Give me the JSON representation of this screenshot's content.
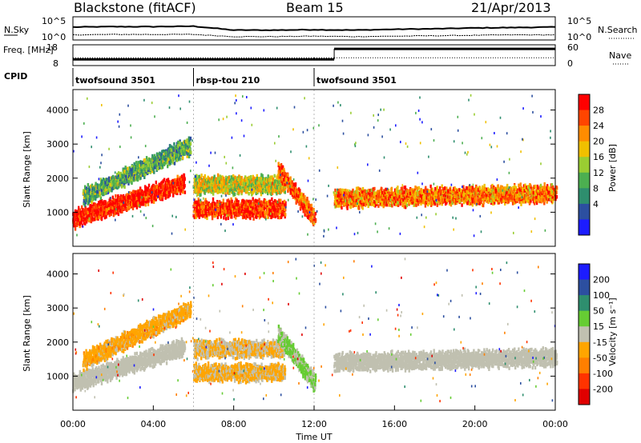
{
  "header": {
    "title_left": "Blackstone (fitACF)",
    "title_center": "Beam 15",
    "title_right": "21/Apr/2013"
  },
  "colors": {
    "power_scale": [
      "#1c1cff",
      "#2c4fa0",
      "#2e8e6e",
      "#4caf50",
      "#9acd32",
      "#f0c000",
      "#ff8c00",
      "#ff4500",
      "#ff0000"
    ],
    "velocity_scale": [
      "#1c1cff",
      "#2c4fa0",
      "#2e8e6e",
      "#66cc33",
      "#c0c0b0",
      "#ffa500",
      "#ff7f00",
      "#ff3300",
      "#e00000"
    ],
    "noise_line": "#000000",
    "background": "#ffffff"
  },
  "chart_data": [
    {
      "type": "line",
      "panel": "noise",
      "left_label": "N.Sky",
      "right_label": "N.Search",
      "left_ticks": [
        "10^5",
        "10^0"
      ],
      "right_ticks": [
        "10^5",
        "10^0"
      ],
      "x": [
        "00:00",
        "02:00",
        "04:00",
        "06:00",
        "08:00",
        "10:00",
        "12:00",
        "14:00",
        "16:00",
        "18:00",
        "20:00",
        "22:00",
        "24:00"
      ],
      "series": [
        {
          "values": [
            2.8,
            2.9,
            2.9,
            3.0,
            2.1,
            2.1,
            2.2,
            2.1,
            2.3,
            2.4,
            2.6,
            2.7,
            2.8
          ]
        },
        {
          "values": [
            1.0,
            1.1,
            1.1,
            1.1,
            0.6,
            0.6,
            0.7,
            0.6,
            0.7,
            0.8,
            0.9,
            1.0,
            1.0
          ]
        }
      ]
    },
    {
      "type": "line",
      "panel": "frequency",
      "left_label": "Freq. [MHz]",
      "right_label": "Nave",
      "left_ticks": [
        "18",
        "8"
      ],
      "right_ticks": [
        "60",
        "0"
      ],
      "steps": [
        {
          "start": "00:00",
          "end": "12:00",
          "freq": 10.8,
          "nave": 22
        },
        {
          "start": "12:00",
          "end": "13:00",
          "freq": 10.8,
          "nave": 22
        },
        {
          "start": "13:00",
          "end": "24:00",
          "freq": 16.3,
          "nave": 22
        }
      ]
    },
    {
      "type": "table",
      "panel": "cpid",
      "label": "CPID",
      "segments": [
        {
          "name": "twofsound 3501",
          "start": "00:00",
          "end": "06:00"
        },
        {
          "name": "rbsp-tou 210",
          "start": "06:00",
          "end": "12:00"
        },
        {
          "name": "twofsound 3501",
          "start": "12:00",
          "end": "24:00"
        }
      ]
    },
    {
      "type": "heatmap",
      "panel": "power",
      "ylabel": "Slant Range [km]",
      "ylim": [
        0,
        4600
      ],
      "yticks": [
        "1000",
        "2000",
        "3000",
        "4000"
      ],
      "colorbar_label": "Power [dB]",
      "colorbar_ticks": [
        "28",
        "24",
        "20",
        "16",
        "12",
        "8",
        "4"
      ],
      "clim": [
        0,
        32
      ],
      "echo_bands": [
        {
          "start_h": 0.0,
          "end_h": 5.5,
          "center_start_km": 850,
          "center_end_km": 1900,
          "power_db": 30
        },
        {
          "start_h": 0.5,
          "end_h": 5.8,
          "center_start_km": 1500,
          "center_end_km": 3000,
          "power_db": 12
        },
        {
          "start_h": 6.0,
          "end_h": 10.5,
          "center_start_km": 1150,
          "center_end_km": 1150,
          "power_db": 28
        },
        {
          "start_h": 6.0,
          "end_h": 10.5,
          "center_start_km": 1850,
          "center_end_km": 1850,
          "power_db": 18
        },
        {
          "start_h": 10.2,
          "end_h": 12.0,
          "center_start_km": 2300,
          "center_end_km": 850,
          "power_db": 26
        },
        {
          "start_h": 13.0,
          "end_h": 24.0,
          "center_start_km": 1450,
          "center_end_km": 1600,
          "power_db": 24
        }
      ]
    },
    {
      "type": "heatmap",
      "panel": "velocity",
      "ylabel": "Slant Range [km]",
      "ylim": [
        0,
        4600
      ],
      "yticks": [
        "1000",
        "2000",
        "3000",
        "4000"
      ],
      "xticks": [
        "00:00",
        "04:00",
        "08:00",
        "12:00",
        "16:00",
        "20:00",
        "00:00"
      ],
      "xlabel": "Time UT",
      "colorbar_label": "Velocity [m s⁻¹]",
      "colorbar_ticks": [
        "200",
        "100",
        "50",
        "15",
        "-15",
        "-50",
        "-100",
        "-200"
      ],
      "clim": [
        -250,
        250
      ],
      "echo_bands": [
        {
          "start_h": 0.0,
          "end_h": 5.5,
          "center_start_km": 850,
          "center_end_km": 1900,
          "velocity": 0
        },
        {
          "start_h": 0.5,
          "end_h": 5.8,
          "center_start_km": 1500,
          "center_end_km": 3000,
          "velocity": -60
        },
        {
          "start_h": 6.0,
          "end_h": 10.5,
          "center_start_km": 1150,
          "center_end_km": 1150,
          "velocity": -40
        },
        {
          "start_h": 6.0,
          "end_h": 10.5,
          "center_start_km": 1850,
          "center_end_km": 1850,
          "velocity": -30
        },
        {
          "start_h": 10.2,
          "end_h": 12.0,
          "center_start_km": 2300,
          "center_end_km": 850,
          "velocity": 40
        },
        {
          "start_h": 13.0,
          "end_h": 24.0,
          "center_start_km": 1450,
          "center_end_km": 1600,
          "velocity": 0
        }
      ]
    }
  ]
}
